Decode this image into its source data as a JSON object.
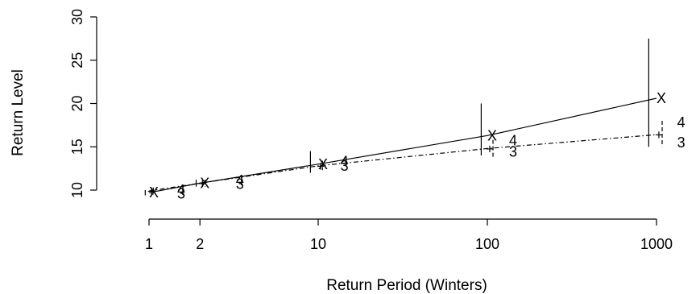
{
  "chart_data": {
    "type": "line",
    "title": "",
    "xlabel": "Return Period (Winters)",
    "ylabel": "Return Level",
    "x_scale": "log",
    "x_ticks": [
      1,
      2,
      10,
      100,
      1000
    ],
    "x_tick_labels": [
      "1",
      "2",
      "10",
      "100",
      "1000"
    ],
    "xlim": [
      0.8,
      1300
    ],
    "ylim": [
      8,
      30
    ],
    "y_ticks": [
      10,
      15,
      20,
      25,
      30
    ],
    "y_tick_labels": [
      "10",
      "15",
      "20",
      "25",
      "30"
    ],
    "grid": false,
    "series": [
      {
        "marker": "X",
        "line": "solid",
        "curve_x": [
          1,
          2,
          10,
          100,
          1000
        ],
        "curve_y": [
          9.7,
          10.8,
          13.0,
          16.3,
          20.6
        ],
        "estimate_x": [
          1,
          2,
          10,
          100,
          1000
        ],
        "estimate_y": [
          9.7,
          10.8,
          13.0,
          16.3,
          20.6
        ],
        "interval_x": [
          0.95,
          1.9,
          9.0,
          92,
          900
        ],
        "interval_low": [
          9.4,
          10.4,
          12.0,
          14.0,
          15.0
        ],
        "interval_high": [
          10.0,
          11.2,
          14.5,
          20.0,
          27.5
        ]
      },
      {
        "marker": "+",
        "line": "dashdot",
        "curve_x": [
          1,
          2,
          10,
          100,
          1000
        ],
        "curve_y": [
          9.9,
          10.8,
          12.8,
          14.8,
          16.4
        ],
        "estimate_x": [
          1,
          2,
          10,
          100,
          1000
        ],
        "estimate_y": [
          9.9,
          10.8,
          12.8,
          14.8,
          16.4
        ],
        "interval_x": [
          1.06,
          2.15,
          10.6,
          108,
          1080
        ],
        "interval_low": [
          9.5,
          10.4,
          12.3,
          13.8,
          15.0
        ],
        "interval_high": [
          10.3,
          11.2,
          13.4,
          15.8,
          18.0
        ]
      }
    ],
    "point_labels": [
      {
        "text": "4",
        "x": 1.55,
        "y": 10.0
      },
      {
        "text": "3",
        "x": 1.55,
        "y": 9.6
      },
      {
        "text": "4",
        "x": 3.45,
        "y": 11.1
      },
      {
        "text": "3",
        "x": 3.45,
        "y": 10.7
      },
      {
        "text": "4",
        "x": 14.3,
        "y": 13.3
      },
      {
        "text": "3",
        "x": 14.3,
        "y": 12.8
      },
      {
        "text": "4",
        "x": 142,
        "y": 15.7
      },
      {
        "text": "3",
        "x": 142,
        "y": 14.4
      },
      {
        "text": "4",
        "x": 1400,
        "y": 17.8
      },
      {
        "text": "3",
        "x": 1400,
        "y": 15.5
      }
    ]
  }
}
